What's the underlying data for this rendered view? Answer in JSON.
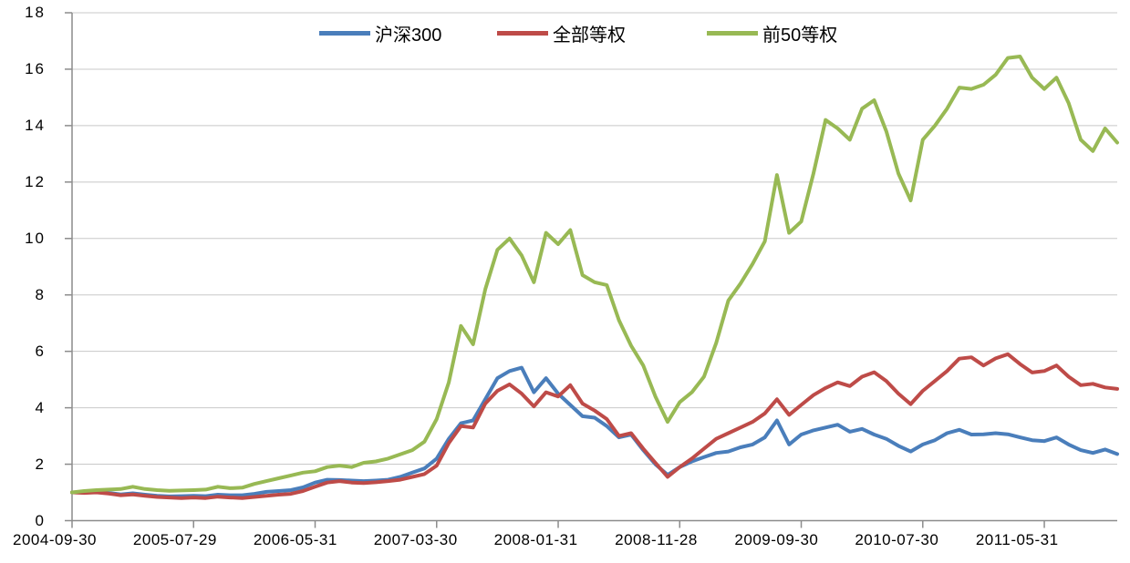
{
  "chart_data": {
    "type": "line",
    "title": "",
    "xlabel": "",
    "ylabel": "",
    "ylim": [
      0,
      18
    ],
    "y_ticks": [
      0,
      2,
      4,
      6,
      8,
      10,
      12,
      14,
      16,
      18
    ],
    "grid": "horizontal",
    "legend_position": "top-center",
    "x_tick_labels": [
      "2004-09-30",
      "2005-07-29",
      "2006-05-31",
      "2007-03-30",
      "2008-01-31",
      "2008-11-28",
      "2009-09-30",
      "2010-07-30",
      "2011-05-31"
    ],
    "x_tick_month_indices": [
      0,
      10,
      20,
      30,
      40,
      50,
      60,
      70,
      80
    ],
    "x_is_monthly_from": "2004-09-30",
    "months_total": 87,
    "axis_color": "#8c8c8c",
    "grid_color": "#c8c8c8",
    "series": [
      {
        "name": "沪深300",
        "color": "#4a7ebb",
        "values": [
          1.0,
          1.0,
          1.02,
          0.98,
          0.93,
          0.97,
          0.92,
          0.88,
          0.86,
          0.87,
          0.88,
          0.87,
          0.92,
          0.9,
          0.9,
          0.95,
          1.02,
          1.05,
          1.08,
          1.18,
          1.35,
          1.45,
          1.44,
          1.42,
          1.4,
          1.42,
          1.45,
          1.55,
          1.7,
          1.85,
          2.2,
          2.9,
          3.45,
          3.55,
          4.3,
          5.05,
          5.3,
          5.42,
          4.55,
          5.05,
          4.5,
          4.1,
          3.7,
          3.65,
          3.35,
          2.95,
          3.05,
          2.5,
          2.0,
          1.62,
          1.9,
          2.1,
          2.25,
          2.4,
          2.45,
          2.6,
          2.7,
          2.95,
          3.55,
          2.7,
          3.05,
          3.2,
          3.3,
          3.4,
          3.15,
          3.25,
          3.05,
          2.9,
          2.65,
          2.45,
          2.7,
          2.85,
          3.1,
          3.22,
          3.05,
          3.06,
          3.1,
          3.06,
          2.95,
          2.85,
          2.82,
          2.95,
          2.7,
          2.5,
          2.4,
          2.52,
          2.36
        ]
      },
      {
        "name": "全部等权",
        "color": "#be4b48",
        "values": [
          1.0,
          0.98,
          1.0,
          0.96,
          0.9,
          0.93,
          0.88,
          0.84,
          0.82,
          0.8,
          0.82,
          0.8,
          0.85,
          0.82,
          0.8,
          0.84,
          0.88,
          0.92,
          0.95,
          1.05,
          1.2,
          1.35,
          1.4,
          1.35,
          1.33,
          1.36,
          1.4,
          1.45,
          1.55,
          1.65,
          1.95,
          2.75,
          3.35,
          3.3,
          4.15,
          4.6,
          4.83,
          4.5,
          4.05,
          4.55,
          4.4,
          4.8,
          4.15,
          3.9,
          3.6,
          3.0,
          3.1,
          2.55,
          2.05,
          1.55,
          1.9,
          2.2,
          2.55,
          2.9,
          3.1,
          3.3,
          3.5,
          3.8,
          4.3,
          3.75,
          4.1,
          4.45,
          4.7,
          4.9,
          4.77,
          5.1,
          5.26,
          4.95,
          4.5,
          4.13,
          4.6,
          4.95,
          5.3,
          5.74,
          5.79,
          5.5,
          5.75,
          5.9,
          5.55,
          5.25,
          5.3,
          5.5,
          5.1,
          4.8,
          4.85,
          4.72,
          4.67
        ]
      },
      {
        "name": "前50等权",
        "color": "#98b954",
        "values": [
          1.0,
          1.05,
          1.08,
          1.1,
          1.12,
          1.2,
          1.12,
          1.08,
          1.06,
          1.07,
          1.08,
          1.1,
          1.2,
          1.15,
          1.17,
          1.3,
          1.4,
          1.5,
          1.6,
          1.7,
          1.75,
          1.9,
          1.95,
          1.9,
          2.05,
          2.1,
          2.2,
          2.35,
          2.5,
          2.8,
          3.6,
          4.9,
          6.9,
          6.25,
          8.2,
          9.6,
          10.0,
          9.4,
          8.45,
          10.2,
          9.8,
          10.3,
          8.7,
          8.45,
          8.35,
          7.1,
          6.2,
          5.5,
          4.4,
          3.5,
          4.2,
          4.55,
          5.1,
          6.3,
          7.8,
          8.4,
          9.1,
          9.9,
          12.25,
          10.2,
          10.6,
          12.3,
          14.2,
          13.9,
          13.5,
          14.6,
          14.9,
          13.8,
          12.3,
          11.35,
          13.5,
          14.0,
          14.6,
          15.35,
          15.3,
          15.45,
          15.8,
          16.4,
          16.45,
          15.7,
          15.3,
          15.7,
          14.8,
          13.5,
          13.1,
          13.9,
          13.4
        ]
      }
    ]
  }
}
